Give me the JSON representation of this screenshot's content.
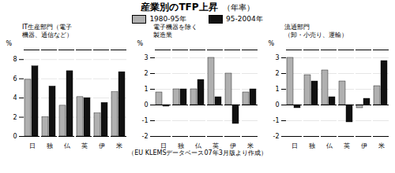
{
  "title": "産業別のTFP上昇",
  "annotations": [
    "（年率）"
  ],
  "subtitle": "（EU KLEMSデータベース07年3月版より作成）",
  "legend": "top",
  "chart_data": [
    {
      "type": "bar",
      "title": "IT生産部門（電子\n機器、通信など）",
      "ylabel": "%",
      "categories": [
        "日",
        "独",
        "仏",
        "英",
        "伊",
        "米"
      ],
      "series": [
        {
          "name": "1980-95年",
          "color": "#b0b0b0",
          "values": [
            5.9,
            2.0,
            3.2,
            4.1,
            2.4,
            4.6
          ]
        },
        {
          "name": "95-2004年",
          "color": "#111111",
          "values": [
            7.3,
            5.2,
            6.8,
            4.0,
            3.5,
            6.7
          ]
        }
      ],
      "ylim": [
        0,
        9
      ],
      "yticks": [
        0,
        2,
        4,
        6,
        8
      ],
      "grid": true
    },
    {
      "type": "bar",
      "title": "電子機器を除く\n製造業",
      "ylabel": "%",
      "categories": [
        "日",
        "独",
        "仏",
        "英",
        "伊",
        "米"
      ],
      "series": [
        {
          "name": "1980-95年",
          "color": "#b0b0b0",
          "values": [
            0.8,
            1.0,
            1.0,
            3.0,
            2.0,
            0.8
          ]
        },
        {
          "name": "95-2004年",
          "color": "#111111",
          "values": [
            -0.1,
            1.0,
            1.6,
            0.5,
            -1.2,
            1.0
          ]
        }
      ],
      "ylim": [
        -2,
        3.5
      ],
      "yticks": [
        -2,
        -1,
        0,
        1,
        2,
        3
      ],
      "grid": true
    },
    {
      "type": "bar",
      "title": "流通部門\n（卸・小売り、運輸）",
      "ylabel": "%",
      "categories": [
        "日",
        "独",
        "仏",
        "英",
        "伊",
        "米"
      ],
      "series": [
        {
          "name": "1980-95年",
          "color": "#b0b0b0",
          "values": [
            3.0,
            1.9,
            2.2,
            1.5,
            -0.2,
            1.2
          ]
        },
        {
          "name": "95-2004年",
          "color": "#111111",
          "values": [
            -0.2,
            1.5,
            0.5,
            -1.1,
            0.4,
            2.8
          ]
        }
      ],
      "ylim": [
        -2,
        3.5
      ],
      "yticks": [
        -2,
        -1,
        0,
        1,
        2,
        3
      ],
      "grid": true
    }
  ]
}
